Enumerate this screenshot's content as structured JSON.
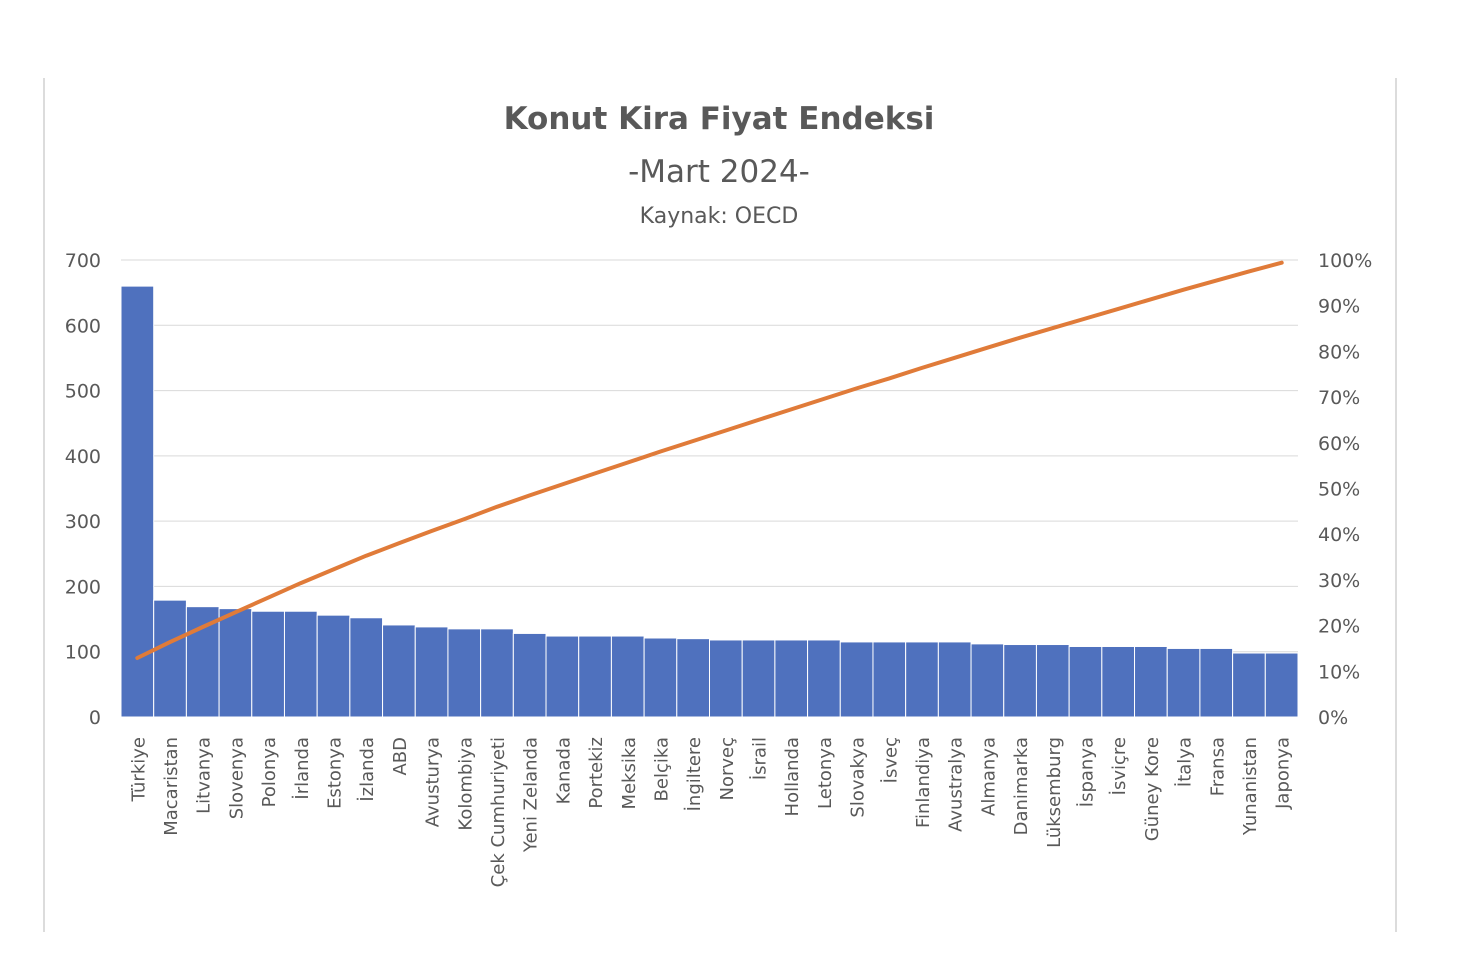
{
  "chart_data": {
    "type": "bar",
    "title": "Konut Kira Fiyat Endeksi",
    "subtitle": "-Mart 2024-",
    "source": "Kaynak: OECD",
    "colors": {
      "bars": "#4f71be",
      "line": "#e07b39",
      "grid": "#d9d9d9",
      "text": "#595959"
    },
    "categories": [
      "Türkiye",
      "Macaristan",
      "Litvanya",
      "Slovenya",
      "Polonya",
      "İrlanda",
      "Estonya",
      "İzlanda",
      "ABD",
      "Avusturya",
      "Kolombiya",
      "Çek Cumhuriyeti",
      "Yeni Zelanda",
      "Kanada",
      "Portekiz",
      "Meksika",
      "Belçika",
      "İngiltere",
      "Norveç",
      "İsrail",
      "Hollanda",
      "Letonya",
      "Slovakya",
      "İsveç",
      "Finlandiya",
      "Avustralya",
      "Almanya",
      "Danimarka",
      "Lüksemburg",
      "İspanya",
      "İsviçre",
      "Güney Kore",
      "İtalya",
      "Fransa",
      "Yunanistan",
      "Japonya"
    ],
    "series": [
      {
        "type": "bar",
        "axis": "left",
        "values": [
          660,
          179,
          169,
          166,
          162,
          162,
          156,
          152,
          141,
          138,
          135,
          135,
          128,
          124,
          124,
          124,
          121,
          120,
          118,
          118,
          118,
          118,
          115,
          115,
          115,
          115,
          112,
          111,
          111,
          108,
          108,
          108,
          105,
          105,
          98,
          98
        ]
      },
      {
        "type": "line",
        "axis": "right",
        "values": [
          12.9,
          16.4,
          19.7,
          22.9,
          26.1,
          29.3,
          32.3,
          35.3,
          38.0,
          40.7,
          43.3,
          46.0,
          48.5,
          50.9,
          53.3,
          55.7,
          58.1,
          60.4,
          62.7,
          65.0,
          67.3,
          69.6,
          71.9,
          74.1,
          76.4,
          78.6,
          80.8,
          83.0,
          85.1,
          87.2,
          89.3,
          91.4,
          93.5,
          95.5,
          97.5,
          99.4
        ]
      }
    ],
    "y_left": {
      "min": 0,
      "max": 700,
      "ticks": [
        "0",
        "100",
        "200",
        "300",
        "400",
        "500",
        "600",
        "700"
      ]
    },
    "y_right": {
      "min": 0,
      "max": 100,
      "ticks": [
        "0%",
        "10%",
        "20%",
        "30%",
        "40%",
        "50%",
        "60%",
        "70%",
        "80%",
        "90%",
        "100%"
      ]
    },
    "grid": true,
    "legend": "none"
  }
}
